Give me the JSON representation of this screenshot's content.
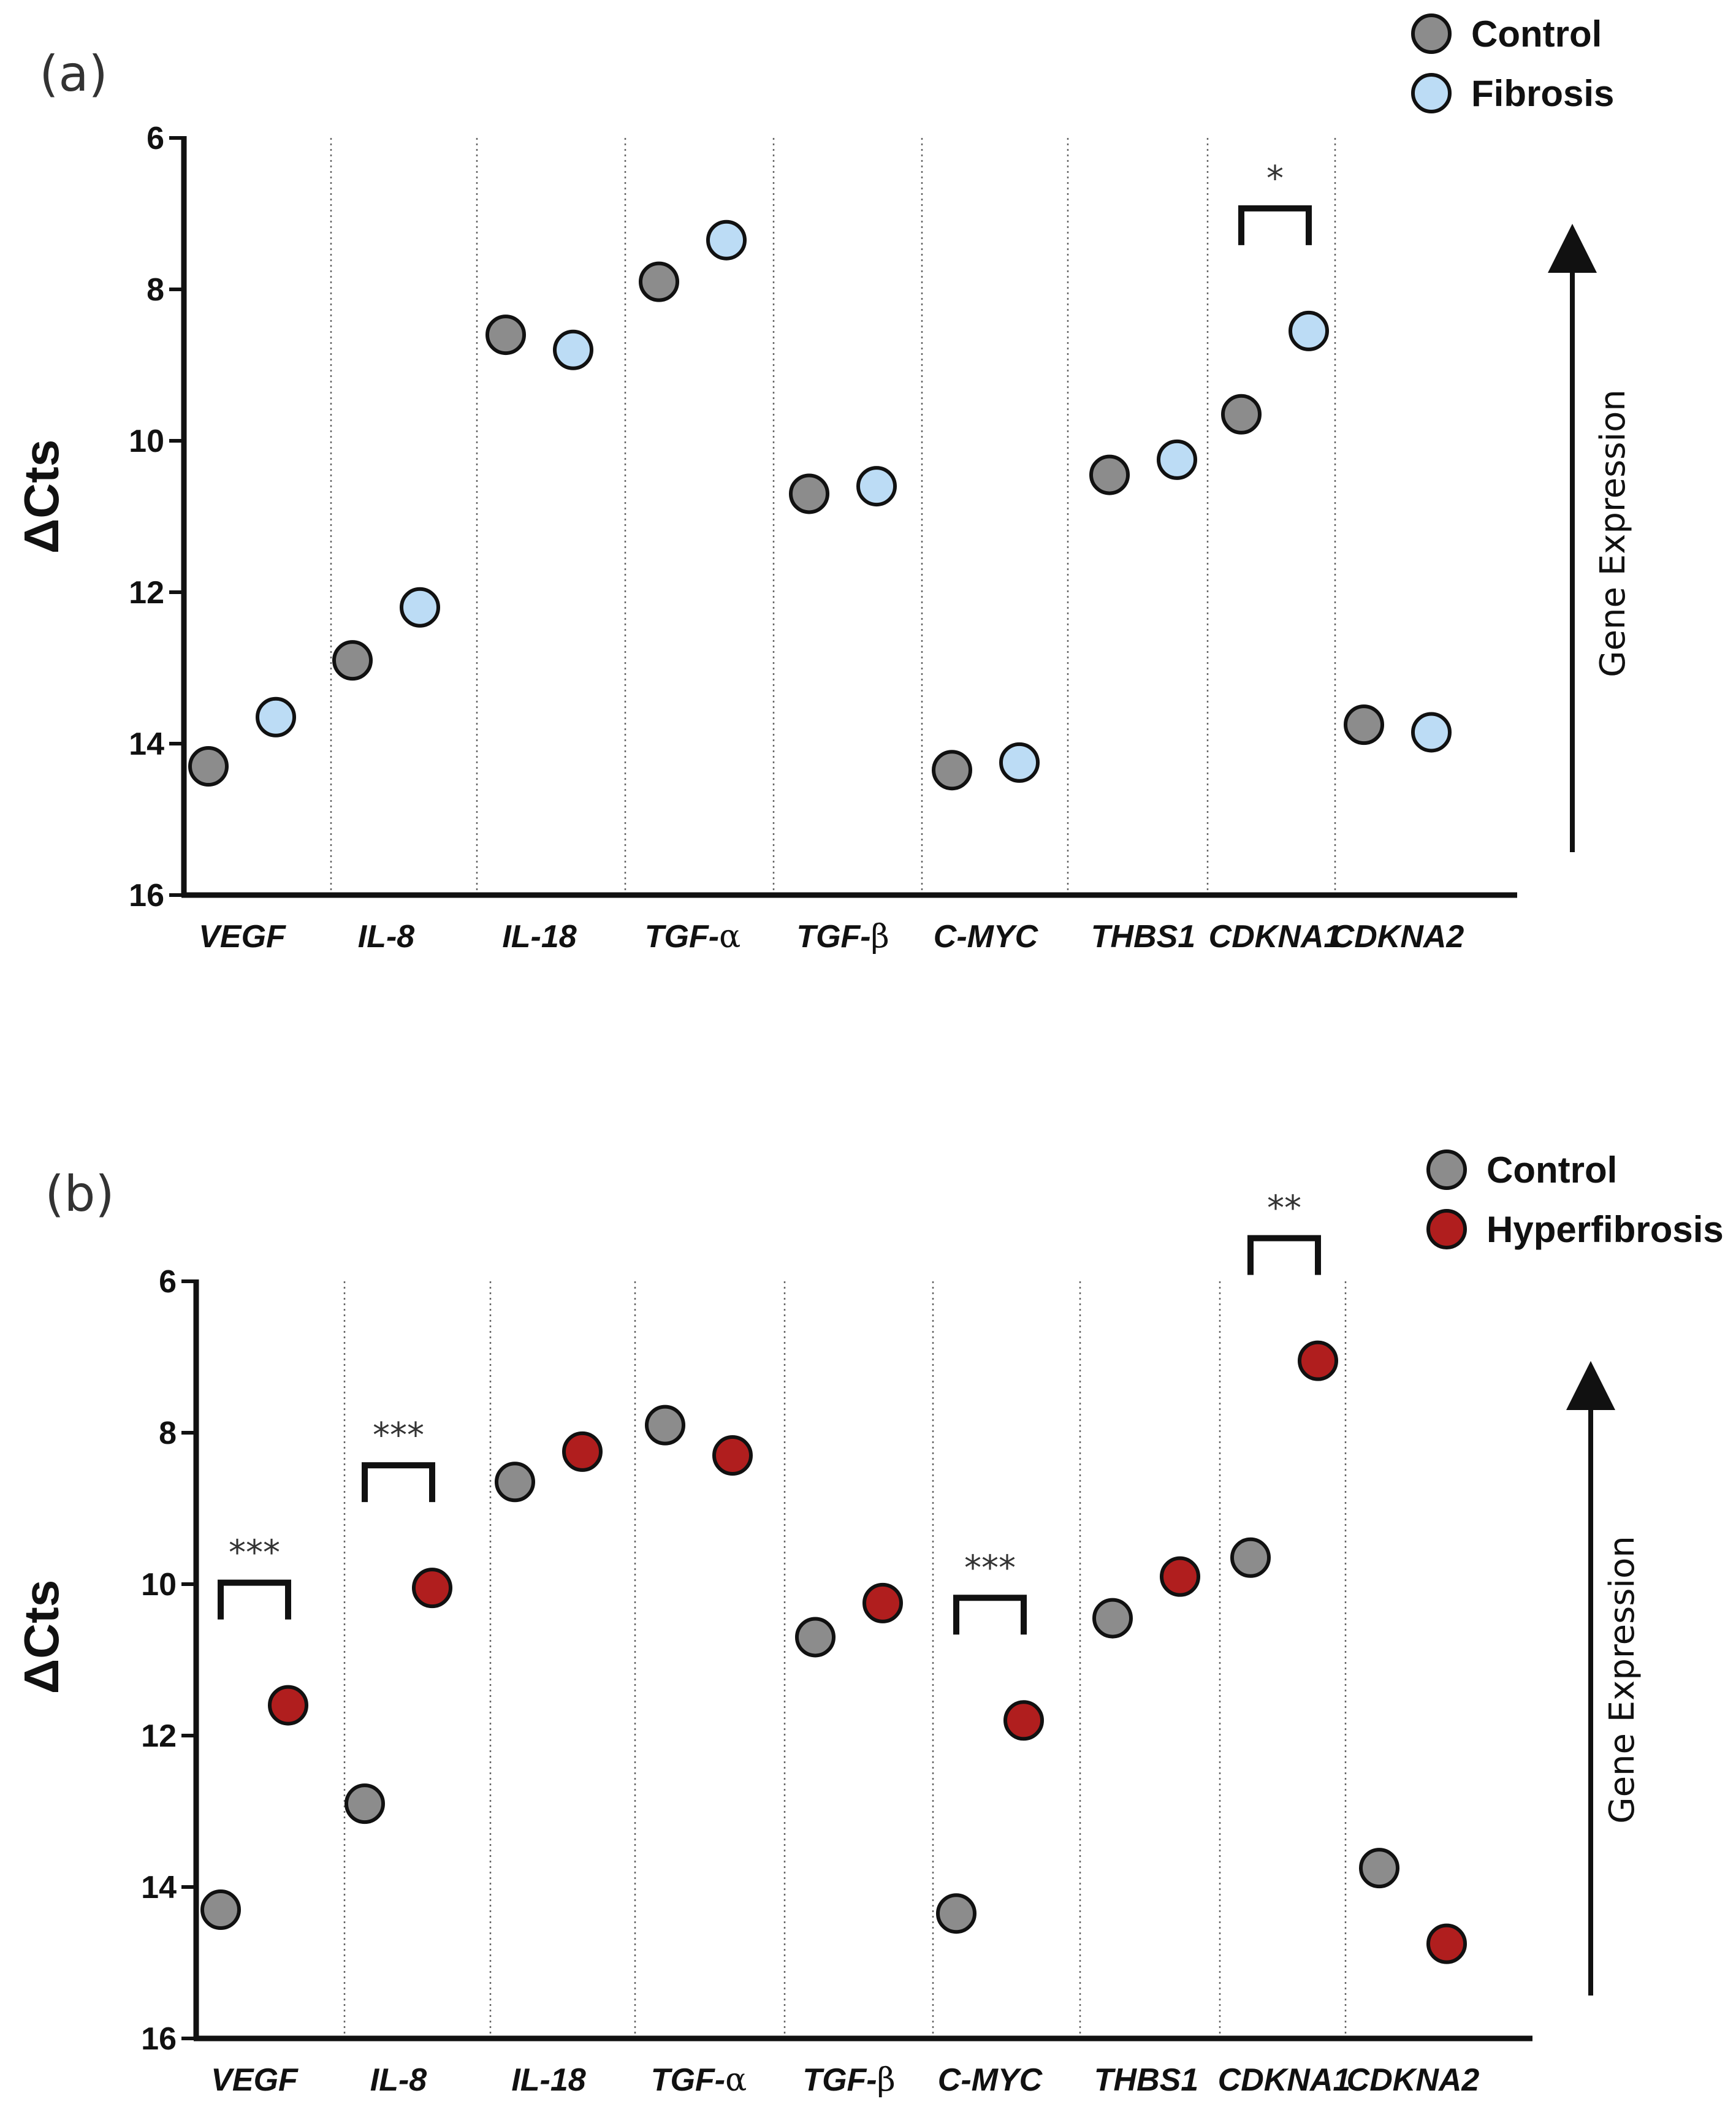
{
  "chart_data": [
    {
      "type": "scatter",
      "panel_label": "(a)",
      "ylabel": "ΔCts",
      "ylim": [
        6,
        16
      ],
      "y_inverted": true,
      "yticks": [
        "6",
        "8",
        "10",
        "12",
        "14",
        "16"
      ],
      "categories": [
        "VEGF",
        "IL-8",
        "IL-18",
        "TGF-α",
        "TGF-β",
        "C-MYC",
        "THBS1",
        "CDKNA1",
        "CDKNA2"
      ],
      "series": [
        {
          "name": "Control",
          "color": "#8c8c8c",
          "values": [
            14.3,
            12.9,
            8.6,
            7.9,
            10.7,
            14.35,
            10.45,
            9.65,
            13.75
          ]
        },
        {
          "name": "Fibrosis",
          "color": "#bcdcf5",
          "values": [
            13.65,
            12.2,
            8.8,
            7.35,
            10.6,
            14.25,
            10.25,
            8.55,
            13.85
          ]
        }
      ],
      "significance": [
        {
          "category": "CDKNA1",
          "label": "*"
        }
      ],
      "arrow_label": "Gene Expression",
      "legend": [
        "Control",
        "Fibrosis"
      ]
    },
    {
      "type": "scatter",
      "panel_label": "(b)",
      "ylabel": "ΔCts",
      "ylim": [
        6,
        16
      ],
      "y_inverted": true,
      "yticks": [
        "6",
        "8",
        "10",
        "12",
        "14",
        "16"
      ],
      "categories": [
        "VEGF",
        "IL-8",
        "IL-18",
        "TGF-α",
        "TGF-β",
        "C-MYC",
        "THBS1",
        "CDKNA1",
        "CDKNA2"
      ],
      "series": [
        {
          "name": "Control",
          "color": "#8c8c8c",
          "values": [
            14.3,
            12.9,
            8.65,
            7.9,
            10.7,
            14.35,
            10.45,
            9.65,
            13.75
          ]
        },
        {
          "name": "Hyperfibrosis",
          "color": "#b01e1e",
          "values": [
            11.6,
            10.05,
            8.25,
            8.3,
            10.25,
            11.8,
            9.9,
            7.05,
            14.75
          ]
        }
      ],
      "significance": [
        {
          "category": "VEGF",
          "label": "***"
        },
        {
          "category": "IL-8",
          "label": "***"
        },
        {
          "category": "C-MYC",
          "label": "***"
        },
        {
          "category": "CDKNA1",
          "label": "**"
        }
      ],
      "arrow_label": "Gene Expression",
      "legend": [
        "Control",
        "Hyperfibrosis"
      ]
    }
  ]
}
